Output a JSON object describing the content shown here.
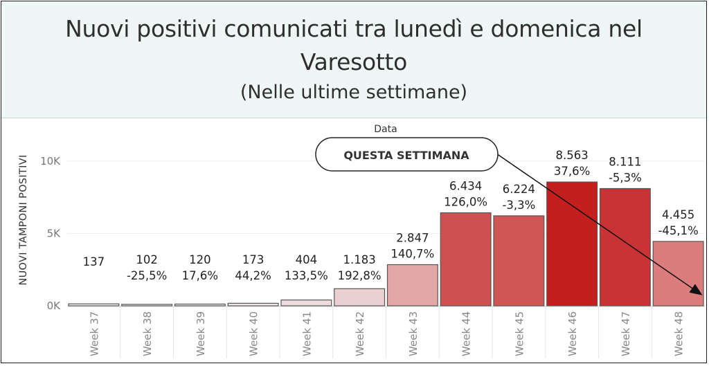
{
  "chart_data": {
    "type": "bar",
    "title": "Nuovi positivi comunicati tra lunedì e domenica nel Varesotto",
    "subtitle": "(Nelle ultime settimane)",
    "header_label": "Data",
    "ylabel": "NUOVI TAMPONI POSITIVI",
    "ylim": [
      0,
      11000
    ],
    "yticks": [
      {
        "value": 0,
        "label": "0K"
      },
      {
        "value": 5000,
        "label": "5K"
      },
      {
        "value": 10000,
        "label": "10K"
      }
    ],
    "grid": true,
    "categories": [
      "Week 37",
      "Week 38",
      "Week 39",
      "Week 40",
      "Week 41",
      "Week 42",
      "Week 43",
      "Week 44",
      "Week 45",
      "Week 46",
      "Week 47",
      "Week 48"
    ],
    "values": [
      137,
      102,
      120,
      173,
      404,
      1183,
      2847,
      6434,
      6224,
      8563,
      8111,
      4455
    ],
    "value_labels": [
      "137",
      "102",
      "120",
      "173",
      "404",
      "1.183",
      "2.847",
      "6.434",
      "6.224",
      "8.563",
      "8.111",
      "4.455"
    ],
    "pct_labels": [
      "",
      "-25,5%",
      "17,6%",
      "44,2%",
      "133,5%",
      "192,8%",
      "140,7%",
      "126,0%",
      "-3,3%",
      "37,6%",
      "-5,3%",
      "-45,1%"
    ],
    "bar_colors": [
      "#f4f0f0",
      "#f5efef",
      "#f2ecec",
      "#f0e6e6",
      "#eedcdc",
      "#e9cfcf",
      "#e3a7a7",
      "#cf5050",
      "#d05555",
      "#c41f1f",
      "#c93333",
      "#dd7c7c"
    ],
    "annotation": {
      "text": "QUESTA SETTIMANA",
      "arrow_target": "Week 48"
    }
  }
}
